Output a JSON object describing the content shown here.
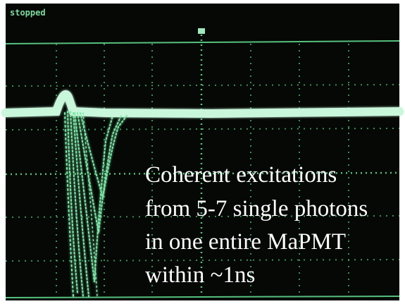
{
  "status": "stopped",
  "annotation": {
    "lines": [
      "Coherent excitations",
      "from 5-7 single photons",
      "in one entire MaPMT",
      "within ~1ns"
    ]
  }
}
